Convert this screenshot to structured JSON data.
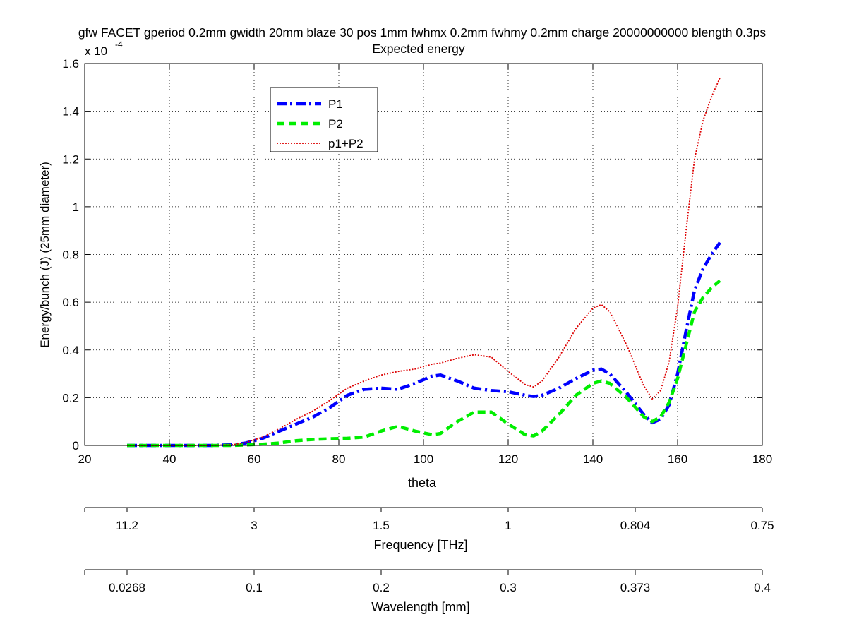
{
  "chart_data": {
    "type": "line",
    "title": "gfw FACET gperiod 0.2mm gwidth 20mm blaze 30 pos 1mm fwhmx 0.2mm fwhmy 0.2mm charge 20000000000 blength 0.3ps",
    "subtitle": "Expected energy",
    "xlabel": "theta",
    "ylabel": "Energy/bunch (J) (25mm diameter)",
    "y_exponent_label": "x 10",
    "y_exponent_power": "-4",
    "xlim": [
      20,
      180
    ],
    "ylim": [
      0,
      1.6
    ],
    "x_ticks": [
      20,
      40,
      60,
      80,
      100,
      120,
      140,
      160,
      180
    ],
    "x_tick_labels": [
      "20",
      "40",
      "60",
      "80",
      "100",
      "120",
      "140",
      "160",
      "180"
    ],
    "y_ticks": [
      0,
      0.2,
      0.4,
      0.6,
      0.8,
      1,
      1.2,
      1.4,
      1.6
    ],
    "y_tick_labels": [
      "0",
      "0.2",
      "0.4",
      "0.6",
      "0.8",
      "1",
      "1.2",
      "1.4",
      "1.6"
    ],
    "grid": true,
    "legend_position": "top-left",
    "x": [
      30,
      40,
      50,
      55,
      58,
      62,
      66,
      70,
      74,
      78,
      82,
      86,
      90,
      94,
      98,
      102,
      104,
      108,
      112,
      116,
      120,
      124,
      126,
      128,
      132,
      136,
      140,
      142,
      144,
      148,
      152,
      154,
      156,
      158,
      160,
      162,
      164,
      166,
      168,
      170
    ],
    "series": [
      {
        "name": "P1",
        "color": "#0000ff",
        "style": "dashdot",
        "values": [
          0,
          0,
          0,
          0.003,
          0.01,
          0.03,
          0.06,
          0.09,
          0.12,
          0.16,
          0.21,
          0.235,
          0.24,
          0.235,
          0.26,
          0.29,
          0.295,
          0.27,
          0.24,
          0.23,
          0.225,
          0.21,
          0.205,
          0.21,
          0.24,
          0.28,
          0.315,
          0.32,
          0.3,
          0.22,
          0.13,
          0.095,
          0.11,
          0.17,
          0.3,
          0.48,
          0.65,
          0.74,
          0.8,
          0.85
        ]
      },
      {
        "name": "P2",
        "color": "#00ee00",
        "style": "dashed",
        "values": [
          0,
          0,
          0,
          0,
          0.002,
          0.005,
          0.01,
          0.02,
          0.025,
          0.028,
          0.03,
          0.035,
          0.06,
          0.08,
          0.06,
          0.045,
          0.05,
          0.1,
          0.14,
          0.14,
          0.09,
          0.045,
          0.04,
          0.06,
          0.13,
          0.21,
          0.26,
          0.27,
          0.26,
          0.2,
          0.12,
          0.1,
          0.12,
          0.18,
          0.28,
          0.42,
          0.56,
          0.62,
          0.66,
          0.69
        ]
      },
      {
        "name": "p1+P2",
        "color": "#dd0000",
        "style": "dotted",
        "values": [
          0,
          0,
          0,
          0.003,
          0.012,
          0.035,
          0.07,
          0.11,
          0.145,
          0.19,
          0.24,
          0.27,
          0.295,
          0.31,
          0.32,
          0.34,
          0.345,
          0.365,
          0.38,
          0.37,
          0.31,
          0.255,
          0.245,
          0.27,
          0.37,
          0.49,
          0.575,
          0.59,
          0.56,
          0.42,
          0.25,
          0.195,
          0.23,
          0.35,
          0.58,
          0.9,
          1.2,
          1.36,
          1.46,
          1.54
        ]
      }
    ],
    "secondary_axes": [
      {
        "label": "Frequency [THz]",
        "tick_labels": [
          "11.2",
          "3",
          "1.5",
          "1",
          "0.804",
          "0.75"
        ],
        "tick_at_theta": [
          30,
          60,
          90,
          120,
          150,
          180
        ]
      },
      {
        "label": "Wavelength [mm]",
        "tick_labels": [
          "0.0268",
          "0.1",
          "0.2",
          "0.3",
          "0.373",
          "0.4"
        ],
        "tick_at_theta": [
          30,
          60,
          90,
          120,
          150,
          180
        ]
      }
    ]
  }
}
